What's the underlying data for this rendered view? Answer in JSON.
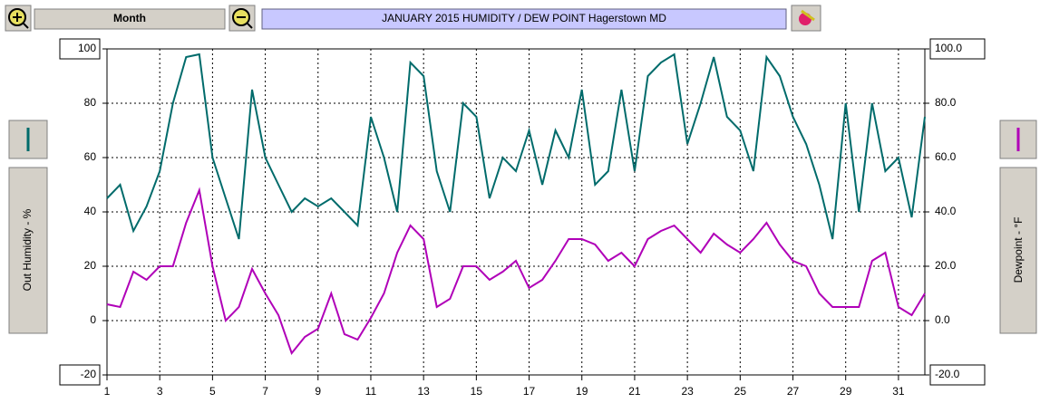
{
  "toolbar": {
    "range_button": "Month"
  },
  "chart_data": {
    "type": "line",
    "title": "JANUARY 2015  HUMIDITY / DEW POINT  Hagerstown MD",
    "ylabel": "Out Humidity - %",
    "y2label": "Dewpoint - °F",
    "x": [
      1,
      1.5,
      2,
      2.5,
      3,
      3.5,
      4,
      4.5,
      5,
      5.5,
      6,
      6.5,
      7,
      7.5,
      8,
      8.5,
      9,
      9.5,
      10,
      10.5,
      11,
      11.5,
      12,
      12.5,
      13,
      13.5,
      14,
      14.5,
      15,
      15.5,
      16,
      16.5,
      17,
      17.5,
      18,
      18.5,
      19,
      19.5,
      20,
      20.5,
      21,
      21.5,
      22,
      22.5,
      23,
      23.5,
      24,
      24.5,
      25,
      25.5,
      26,
      26.5,
      27,
      27.5,
      28,
      28.5,
      29,
      29.5,
      30,
      30.5,
      31,
      31.5,
      32
    ],
    "series": [
      {
        "color": "#006b6b",
        "axis": "y",
        "values": [
          45,
          50,
          33,
          42,
          55,
          80,
          97,
          98,
          60,
          45,
          30,
          85,
          60,
          50,
          40,
          45,
          42,
          45,
          40,
          35,
          75,
          60,
          40,
          95,
          90,
          55,
          40,
          80,
          75,
          45,
          60,
          55,
          70,
          50,
          70,
          60,
          85,
          50,
          55,
          85,
          55,
          90,
          95,
          98,
          65,
          80,
          97,
          75,
          70,
          55,
          97,
          90,
          75,
          65,
          50,
          30,
          80,
          40,
          80,
          55,
          60,
          38,
          75
        ]
      },
      {
        "color": "#b000b8",
        "axis": "y2",
        "values": [
          6,
          5,
          18,
          15,
          20,
          20,
          36,
          48,
          20,
          0,
          5,
          19,
          10,
          2,
          -12,
          -6,
          -3,
          10,
          -5,
          -7,
          1,
          10,
          25,
          35,
          30,
          5,
          8,
          20,
          20,
          15,
          18,
          22,
          12,
          15,
          22,
          30,
          30,
          28,
          22,
          25,
          20,
          30,
          33,
          35,
          30,
          25,
          32,
          28,
          25,
          30,
          36,
          28,
          22,
          20,
          10,
          5,
          5,
          5,
          22,
          25,
          5,
          2,
          10
        ]
      }
    ],
    "xlim": [
      1,
      32
    ],
    "xticks": [
      1,
      3,
      5,
      7,
      9,
      11,
      13,
      15,
      17,
      19,
      21,
      23,
      25,
      27,
      29,
      31
    ],
    "ylim": [
      -20,
      100
    ],
    "yticks": [
      -20,
      0,
      20,
      40,
      60,
      80,
      100
    ],
    "y2lim": [
      -20,
      100
    ],
    "y2ticks": [
      {
        "value": -20,
        "label": "-20.0"
      },
      {
        "value": 0,
        "label": "0.0"
      },
      {
        "value": 20,
        "label": "20.0"
      },
      {
        "value": 40,
        "label": "40.0"
      },
      {
        "value": 60,
        "label": "60.0"
      },
      {
        "value": 80,
        "label": "80.0"
      },
      {
        "value": 100,
        "label": "100.0"
      }
    ],
    "grid": true
  }
}
